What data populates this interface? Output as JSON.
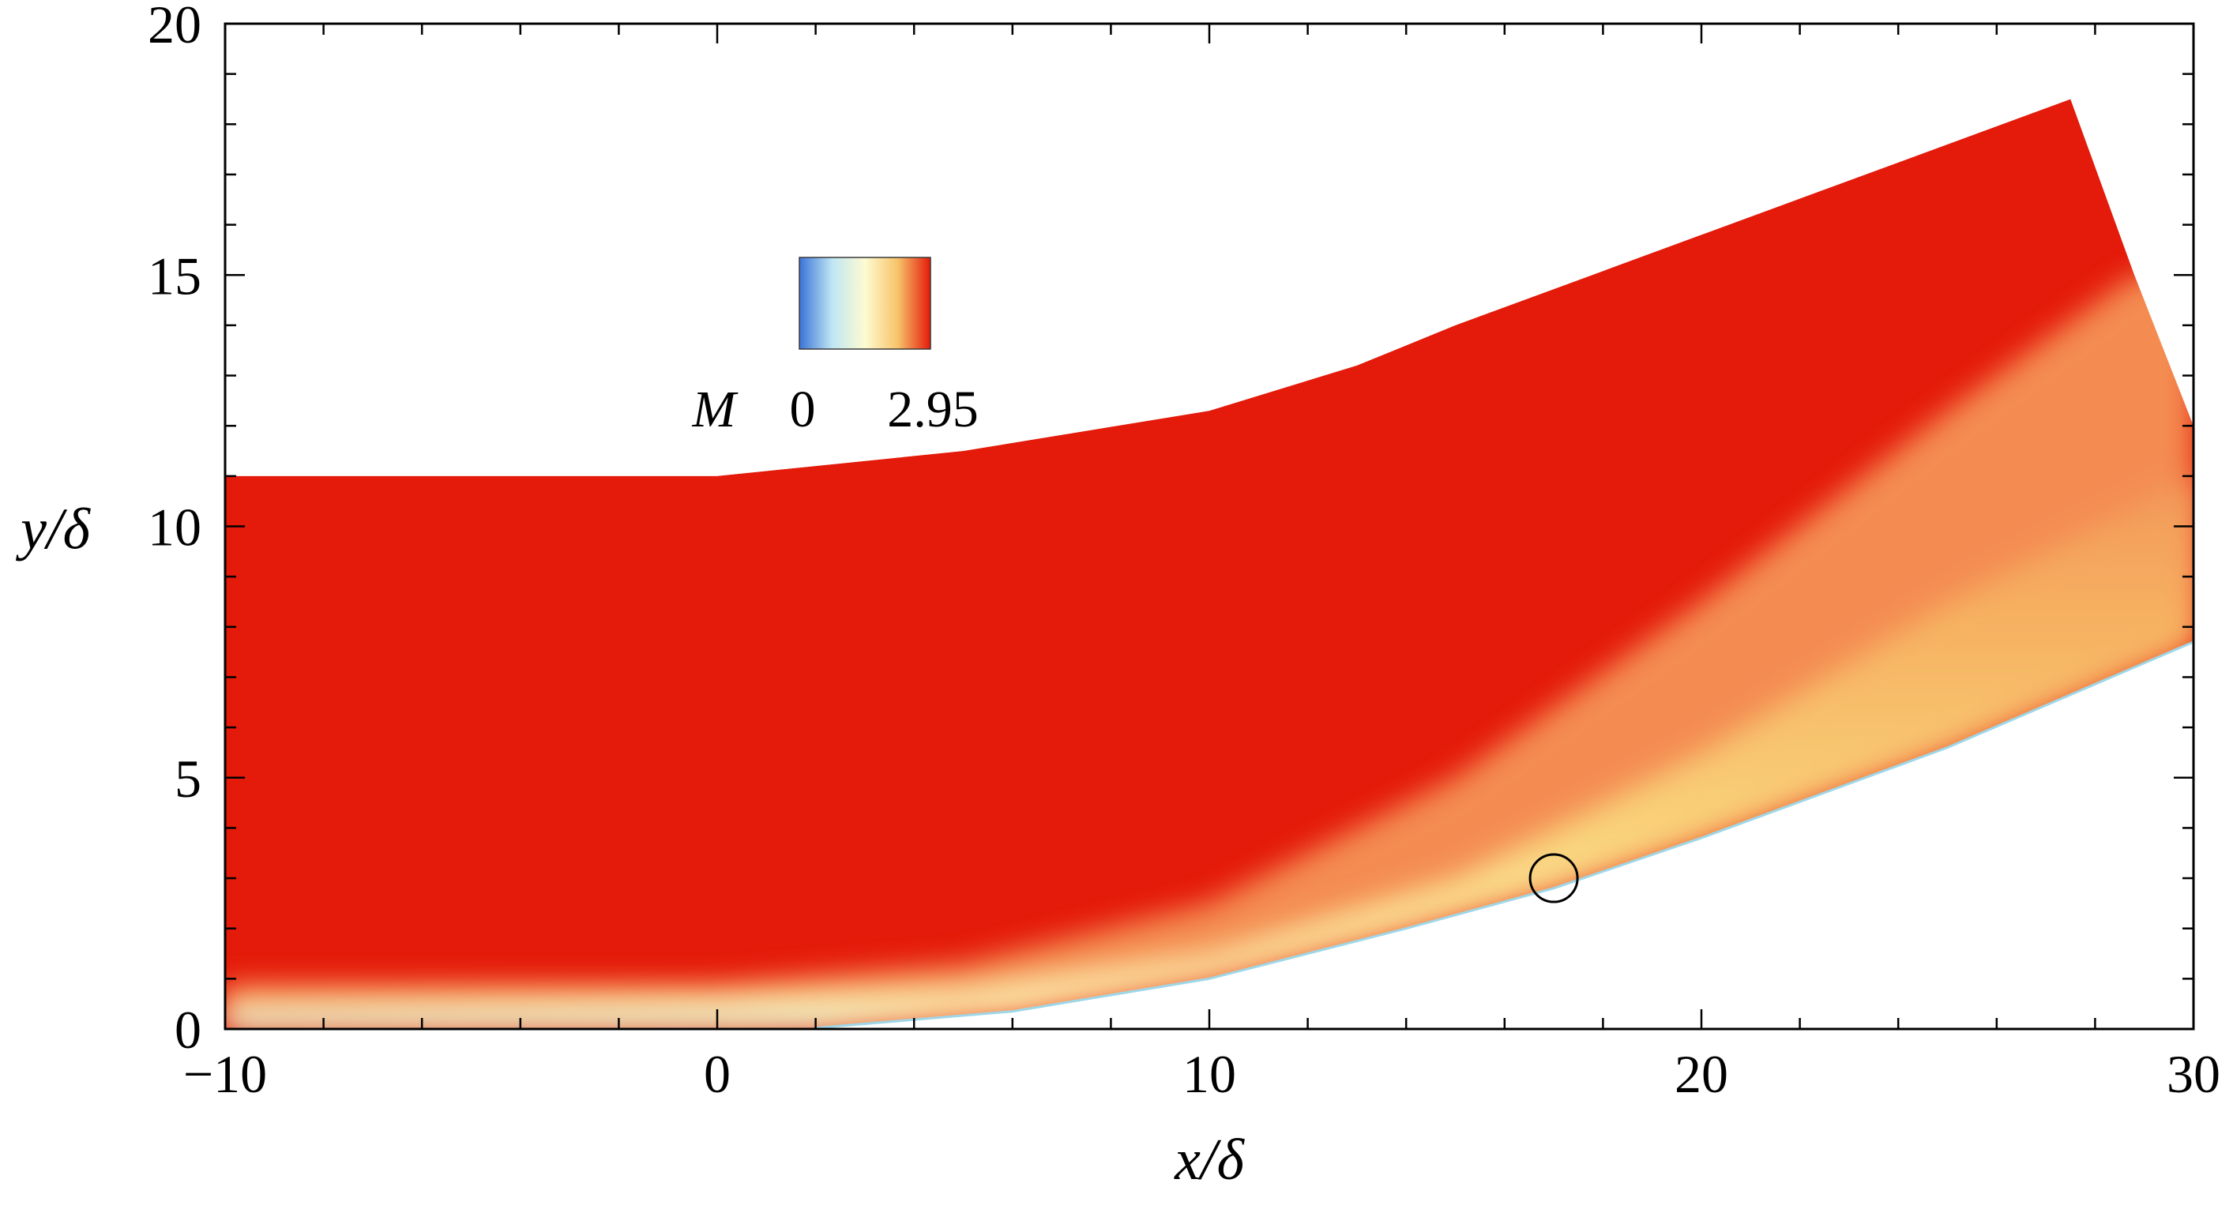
{
  "chart_data": {
    "type": "heatmap",
    "title": "",
    "xlabel": "x/δ",
    "ylabel": "y/δ",
    "xlim": [
      -10,
      30
    ],
    "ylim": [
      0,
      20
    ],
    "x_ticks": [
      -10,
      0,
      10,
      20,
      30
    ],
    "y_ticks": [
      0,
      5,
      10,
      15,
      20
    ],
    "x_tick_labels": [
      "−10",
      "0",
      "10",
      "20",
      "30"
    ],
    "y_tick_labels": [
      "0",
      "5",
      "10",
      "15",
      "20"
    ],
    "colorbar": {
      "variable": "M",
      "min": 0,
      "max": 2.95,
      "min_label": "0",
      "max_label": "2.95",
      "colors": [
        "#3b73d8",
        "#bfe6f4",
        "#fdfbd2",
        "#f7c46a",
        "#e41a0a"
      ]
    },
    "domain_boundaries": {
      "outer": [
        [
          -10,
          11.0
        ],
        [
          0,
          11.0
        ],
        [
          5,
          11.5
        ],
        [
          10,
          12.3
        ],
        [
          13,
          13.2
        ],
        [
          15,
          14.0
        ],
        [
          20,
          15.8
        ],
        [
          27.5,
          18.5
        ],
        [
          28.8,
          15.0
        ],
        [
          30,
          12.0
        ]
      ],
      "wall": [
        [
          -10,
          0
        ],
        [
          0,
          0
        ],
        [
          2,
          0.02
        ],
        [
          6,
          0.35
        ],
        [
          10,
          1.0
        ],
        [
          14,
          2.0
        ],
        [
          17,
          2.8
        ],
        [
          20,
          3.8
        ],
        [
          25,
          5.6
        ],
        [
          30,
          7.7
        ]
      ],
      "boundary_layer_edge": [
        [
          -10,
          0.9
        ],
        [
          0,
          0.9
        ],
        [
          5,
          1.3
        ],
        [
          10,
          2.5
        ],
        [
          15,
          5.0
        ],
        [
          20,
          8.5
        ],
        [
          25,
          12.3
        ],
        [
          28.8,
          15.0
        ]
      ],
      "shear_layer_edge": [
        [
          -10,
          0.5
        ],
        [
          0,
          0.6
        ],
        [
          5,
          0.8
        ],
        [
          10,
          1.5
        ],
        [
          15,
          3.0
        ],
        [
          20,
          5.5
        ],
        [
          25,
          8.5
        ],
        [
          30,
          11.0
        ]
      ]
    },
    "freestream_mach": 2.95,
    "marker": {
      "type": "circle",
      "x": 17,
      "y": 3.0
    },
    "grid": false,
    "legend": "colorbar, upper-left interior"
  }
}
